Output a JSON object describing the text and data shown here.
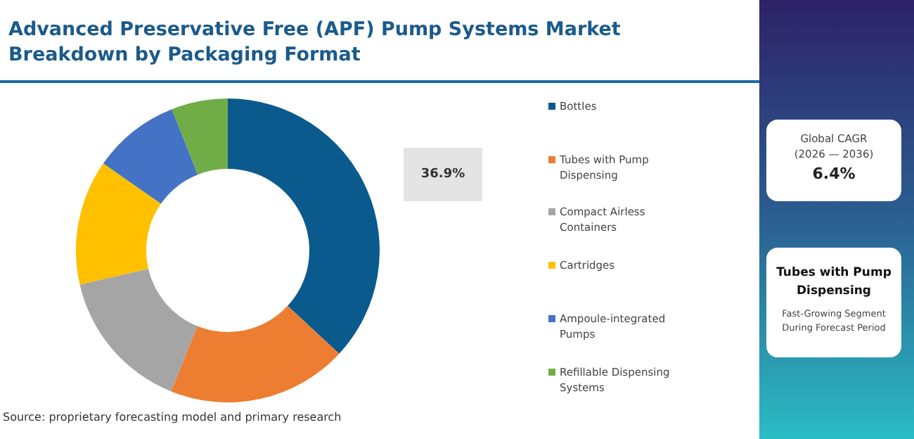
{
  "chart_data": {
    "type": "donut",
    "title": "Advanced Preservative Free (APF) Pump Systems Market Breakdown by Packaging Format",
    "categories": [
      "Bottles",
      "Tubes with Pump Dispensing",
      "Compact Airless Containers",
      "Cartridges",
      "Ampoule-integrated Pumps",
      "Refillable Dispensing Systems"
    ],
    "values": [
      36.9,
      19.2,
      15.3,
      13.3,
      9.3,
      6.0
    ],
    "colors": [
      "#0b5a8e",
      "#ed7d31",
      "#a5a5a5",
      "#ffc000",
      "#4472c4",
      "#70ad47"
    ],
    "value_labels": [
      "36.9%",
      null,
      null,
      null,
      null,
      null
    ],
    "legend": "right",
    "annotations": [
      "Source: proprietary forecasting model and primary research",
      "Global CAGR",
      "(2026 — 2036)",
      "6.4%",
      "Tubes with Pump Dispensing",
      "Fast-Growing Segment During Forecast Period"
    ]
  }
}
